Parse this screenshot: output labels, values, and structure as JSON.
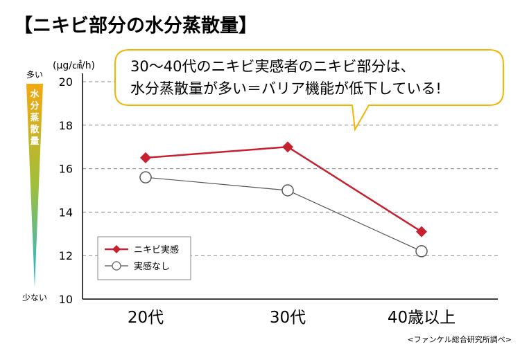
{
  "title": "【ニキビ部分の水分蒸散量】",
  "callout": {
    "line1": "30～40代のニキビ実感者のニキビ部分は、",
    "line2": "水分蒸散量が多い＝バリア機能が低下している!"
  },
  "scale_bar": {
    "top_label": "多い",
    "bottom_label": "少ない",
    "caption": [
      "水",
      "分",
      "蒸",
      "散",
      "量"
    ],
    "colors": [
      "#f3a812",
      "#9fbf3b",
      "#1fb6d8"
    ]
  },
  "source": "<ファンケル総合研究所調べ>",
  "colors": {
    "series1": "#c7202f",
    "series2": "#555555",
    "callout_border": "#f5b400",
    "grid": "#888888"
  },
  "chart_data": {
    "type": "line",
    "title": "【ニキビ部分の水分蒸散量】",
    "ylabel": "(μg/㎠/h)",
    "xlabel": "",
    "categories": [
      "20代",
      "30代",
      "40歳以上"
    ],
    "ylim": [
      10,
      20
    ],
    "yticks": [
      10,
      12,
      14,
      16,
      18,
      20
    ],
    "ytick_labels": [
      "10",
      "12",
      "14",
      "16",
      "18",
      "20"
    ],
    "grid": true,
    "legend_position": "bottom-left",
    "series": [
      {
        "name": "ニキビ実感",
        "values": [
          16.5,
          17.0,
          13.1
        ],
        "marker": "diamond",
        "color": "#c7202f"
      },
      {
        "name": "実感なし",
        "values": [
          15.6,
          15.0,
          12.2
        ],
        "marker": "circle",
        "color": "#555555"
      }
    ]
  }
}
